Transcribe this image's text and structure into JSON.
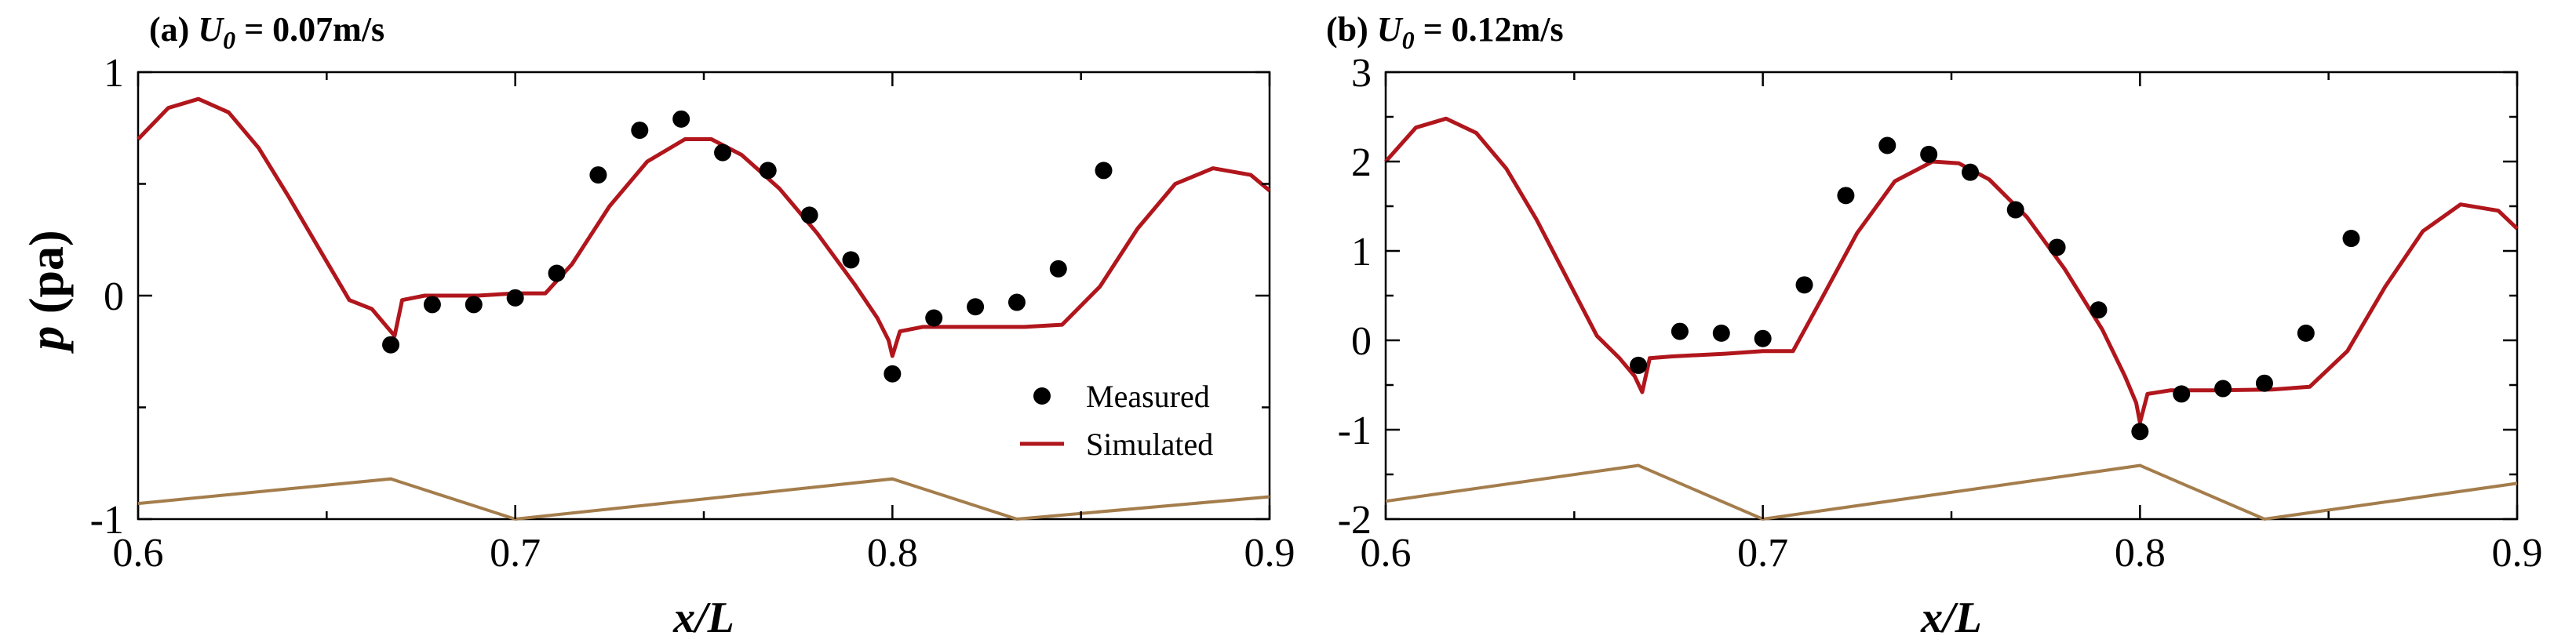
{
  "figure": {
    "ylabel_symbol": "p",
    "ylabel_unit": "(pa)"
  },
  "chart_data": [
    {
      "type": "line",
      "panel_label": "(a)",
      "title_symbol": "U",
      "title_subscript": "0",
      "title_value": " = 0.07m/s",
      "xlabel": "x/L",
      "ylabel": "p (pa)",
      "xlim": [
        0.6,
        0.9
      ],
      "ylim": [
        -1,
        1
      ],
      "xticks": [
        0.6,
        0.7,
        0.8,
        0.9
      ],
      "xtick_labels": [
        "0.6",
        "0.7",
        "0.8",
        "0.9"
      ],
      "yticks": [
        -1,
        0,
        1
      ],
      "ytick_labels": [
        "-1",
        "0",
        "1"
      ],
      "grid": false,
      "legend": {
        "position": "lower-right",
        "entries": [
          {
            "label": "Measured",
            "marker": "circle",
            "color": "#000000"
          },
          {
            "label": "Simulated",
            "line": "solid",
            "color": "#b0161c"
          }
        ]
      },
      "series": [
        {
          "name": "Measured",
          "kind": "scatter",
          "color": "#000000",
          "x": [
            0.667,
            0.678,
            0.689,
            0.7,
            0.711,
            0.722,
            0.733,
            0.744,
            0.755,
            0.767,
            0.778,
            0.789,
            0.8,
            0.811,
            0.822,
            0.833,
            0.844,
            0.856
          ],
          "y": [
            -0.22,
            -0.04,
            -0.04,
            -0.01,
            0.1,
            0.54,
            0.74,
            0.79,
            0.64,
            0.56,
            0.36,
            0.16,
            -0.35,
            -0.1,
            -0.05,
            -0.03,
            0.12,
            0.56
          ]
        },
        {
          "name": "Simulated",
          "kind": "line",
          "color": "#b0161c",
          "x": [
            0.6,
            0.608,
            0.616,
            0.624,
            0.632,
            0.64,
            0.648,
            0.656,
            0.662,
            0.666,
            0.668,
            0.67,
            0.676,
            0.69,
            0.7,
            0.708,
            0.715,
            0.725,
            0.735,
            0.745,
            0.752,
            0.76,
            0.77,
            0.78,
            0.79,
            0.796,
            0.799,
            0.8,
            0.802,
            0.808,
            0.82,
            0.835,
            0.845,
            0.855,
            0.865,
            0.875,
            0.885,
            0.895,
            0.9
          ],
          "y": [
            0.7,
            0.84,
            0.88,
            0.82,
            0.66,
            0.44,
            0.21,
            -0.02,
            -0.06,
            -0.14,
            -0.18,
            -0.02,
            0.0,
            0.0,
            0.01,
            0.01,
            0.14,
            0.4,
            0.6,
            0.7,
            0.7,
            0.63,
            0.48,
            0.28,
            0.05,
            -0.1,
            -0.2,
            -0.27,
            -0.16,
            -0.14,
            -0.14,
            -0.14,
            -0.13,
            0.04,
            0.3,
            0.5,
            0.57,
            0.54,
            0.47
          ]
        },
        {
          "name": "",
          "kind": "geometry-profile",
          "color": "#a47d4c",
          "x": [
            0.6,
            0.667,
            0.7,
            0.8,
            0.833,
            0.9
          ],
          "y": [
            -0.93,
            -0.82,
            -1.0,
            -0.82,
            -1.0,
            -0.9
          ]
        }
      ]
    },
    {
      "type": "line",
      "panel_label": "(b)",
      "title_symbol": "U",
      "title_subscript": "0",
      "title_value": " = 0.12m/s",
      "xlabel": "x/L",
      "ylabel": "",
      "xlim": [
        0.6,
        0.9
      ],
      "ylim": [
        -2,
        3
      ],
      "xticks": [
        0.6,
        0.7,
        0.8,
        0.9
      ],
      "xtick_labels": [
        "0.6",
        "0.7",
        "0.8",
        "0.9"
      ],
      "yticks": [
        -2,
        -1,
        0,
        1,
        2,
        3
      ],
      "ytick_labels": [
        "-2",
        "-1",
        "0",
        "1",
        "2",
        "3"
      ],
      "grid": false,
      "series": [
        {
          "name": "Measured",
          "kind": "scatter",
          "color": "#000000",
          "x": [
            0.667,
            0.678,
            0.689,
            0.7,
            0.711,
            0.722,
            0.733,
            0.744,
            0.755,
            0.767,
            0.778,
            0.789,
            0.8,
            0.811,
            0.822,
            0.833,
            0.844,
            0.856
          ],
          "y": [
            -0.28,
            0.1,
            0.08,
            0.02,
            0.62,
            1.62,
            2.18,
            2.08,
            1.88,
            1.46,
            1.04,
            0.34,
            -1.02,
            -0.6,
            -0.54,
            -0.48,
            0.08,
            1.14
          ]
        },
        {
          "name": "Simulated",
          "kind": "line",
          "color": "#b0161c",
          "x": [
            0.6,
            0.608,
            0.616,
            0.624,
            0.632,
            0.64,
            0.648,
            0.656,
            0.662,
            0.666,
            0.668,
            0.67,
            0.676,
            0.69,
            0.7,
            0.708,
            0.715,
            0.725,
            0.735,
            0.745,
            0.752,
            0.76,
            0.77,
            0.78,
            0.79,
            0.796,
            0.799,
            0.8,
            0.802,
            0.808,
            0.82,
            0.835,
            0.845,
            0.855,
            0.865,
            0.875,
            0.885,
            0.895,
            0.9
          ],
          "y": [
            2.0,
            2.38,
            2.48,
            2.32,
            1.92,
            1.35,
            0.7,
            0.05,
            -0.2,
            -0.4,
            -0.58,
            -0.2,
            -0.18,
            -0.15,
            -0.12,
            -0.12,
            0.42,
            1.2,
            1.78,
            2.0,
            1.98,
            1.8,
            1.38,
            0.8,
            0.12,
            -0.4,
            -0.7,
            -0.92,
            -0.6,
            -0.56,
            -0.56,
            -0.55,
            -0.52,
            -0.12,
            0.6,
            1.22,
            1.52,
            1.45,
            1.25
          ]
        },
        {
          "name": "",
          "kind": "geometry-profile",
          "color": "#a47d4c",
          "x": [
            0.6,
            0.667,
            0.7,
            0.8,
            0.833,
            0.9
          ],
          "y": [
            -1.8,
            -1.4,
            -2.0,
            -1.4,
            -2.0,
            -1.6
          ]
        }
      ]
    }
  ]
}
